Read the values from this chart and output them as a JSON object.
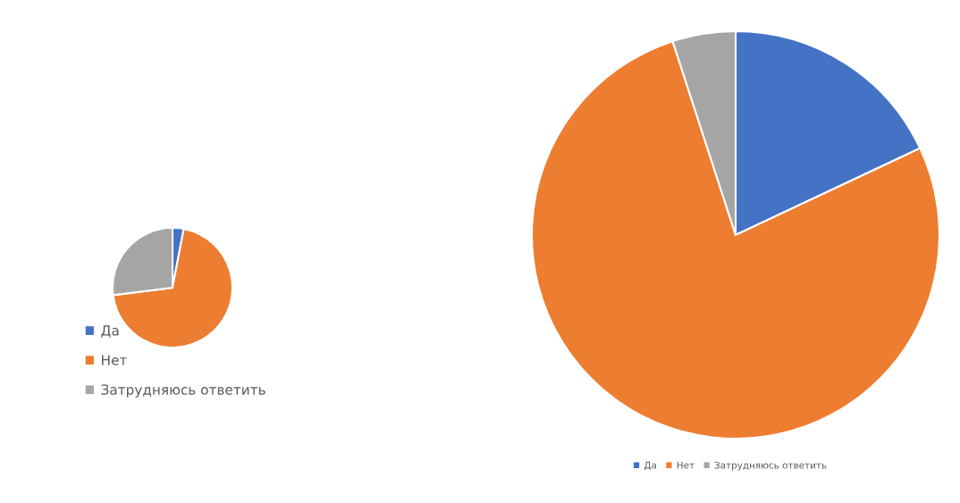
{
  "chart_data": [
    {
      "type": "pie",
      "categories": [
        "Да",
        "Нет",
        "Затрудняюсь ответить"
      ],
      "values": [
        3,
        70,
        27
      ],
      "colors": [
        "#4472c4",
        "#ed7d31",
        "#a5a5a5"
      ],
      "legend": "bottom"
    },
    {
      "type": "pie",
      "categories": [
        "Да",
        "Нет",
        "Затрудняюсь ответить"
      ],
      "values": [
        18,
        77,
        5
      ],
      "colors": [
        "#4472c4",
        "#ed7d31",
        "#a5a5a5"
      ],
      "legend": "bottom"
    }
  ]
}
